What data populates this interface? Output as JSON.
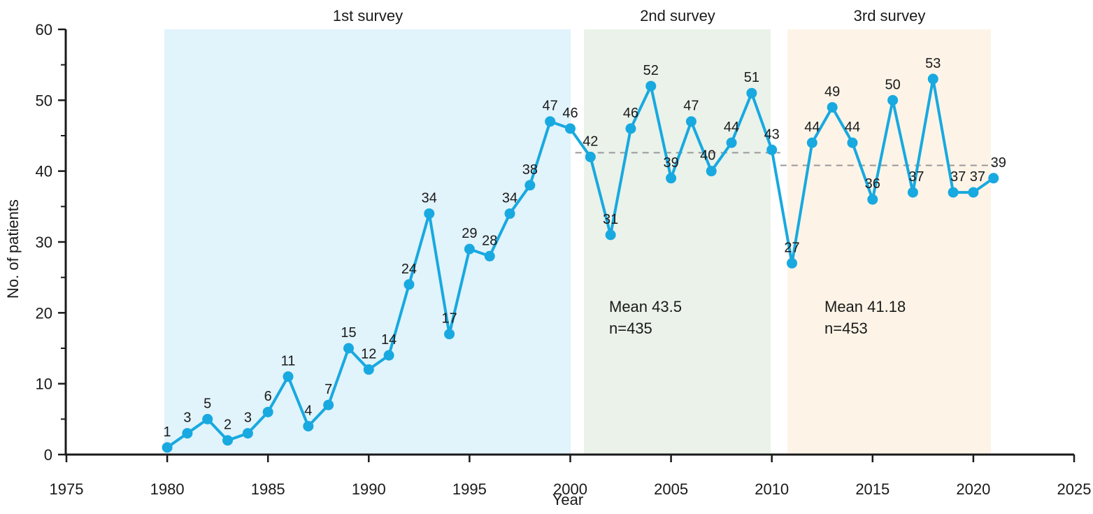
{
  "chart_data": {
    "type": "line",
    "title": "",
    "xlabel": "Year",
    "ylabel": "No. of patients",
    "xlim": [
      1975,
      2025
    ],
    "ylim": [
      0,
      60
    ],
    "x_ticks": [
      1975,
      1980,
      1985,
      1990,
      1995,
      2000,
      2005,
      2010,
      2015,
      2020,
      2025
    ],
    "y_ticks": [
      0,
      10,
      20,
      30,
      40,
      50,
      60
    ],
    "y_minor_ticks": [
      5,
      15,
      25,
      35,
      45,
      55
    ],
    "grid": false,
    "legend": "none",
    "point_labels_visible": true,
    "series_name": "No. of patients per year",
    "series_color": "#18a9e0",
    "dash_color": "#999999",
    "axis_color": "#1a1a1a",
    "text_color": "#1a1a1a",
    "background_color": "#ffffff",
    "x": [
      1980,
      1981,
      1982,
      1983,
      1984,
      1985,
      1986,
      1987,
      1988,
      1989,
      1990,
      1991,
      1992,
      1993,
      1994,
      1995,
      1996,
      1997,
      1998,
      1999,
      2000,
      2001,
      2002,
      2003,
      2004,
      2005,
      2006,
      2007,
      2008,
      2009,
      2010,
      2011,
      2012,
      2013,
      2014,
      2015,
      2016,
      2017,
      2018,
      2019,
      2020,
      2021
    ],
    "values": [
      1,
      3,
      5,
      2,
      3,
      6,
      11,
      4,
      7,
      15,
      12,
      14,
      24,
      34,
      17,
      29,
      28,
      34,
      38,
      47,
      46,
      42,
      31,
      46,
      52,
      39,
      47,
      40,
      44,
      51,
      43,
      27,
      44,
      49,
      44,
      36,
      50,
      37,
      53,
      37,
      37,
      39
    ],
    "regions": [
      {
        "label": "1st survey",
        "color": "#e1f3fb",
        "start_year": 1979.86,
        "end_year": 2000.02
      },
      {
        "label": "2nd survey",
        "color": "#eaf2ea",
        "start_year": 2000.68,
        "end_year": 2009.94,
        "mean_text": "Mean 43.5",
        "n_text": "n=435",
        "mean_value": 43.5,
        "n_value": 435,
        "dash_from": 2000.25,
        "dash_to": 2010.42,
        "dash_draw_value": 42.6
      },
      {
        "label": "3rd survey",
        "color": "#fdf4e7",
        "start_year": 2010.77,
        "end_year": 2020.87,
        "mean_text": "Mean 41.18",
        "n_text": "n=453",
        "mean_value": 41.18,
        "n_value": 453,
        "dash_from": 2010.42,
        "dash_to": 2021.05,
        "dash_draw_value": 40.8
      }
    ],
    "label_dx": {
      "2007": -5,
      "2017": 5,
      "2019": 7,
      "2020": 6,
      "2021": 7
    }
  }
}
